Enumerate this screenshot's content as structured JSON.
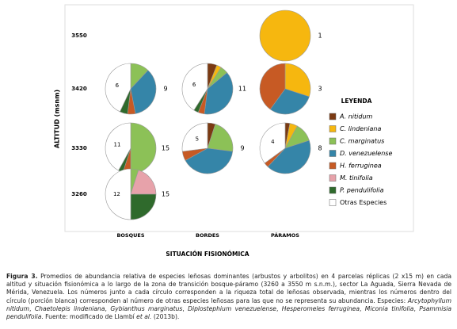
{
  "figure": {
    "y_axis_label": "ALTITUD (msnm)",
    "x_axis_label": "SITUACIÓN FISIONÓMICA",
    "situations": [
      "BOSQUES",
      "BORDES",
      "PÁRAMOS"
    ],
    "legend": {
      "title": "LEYENDA",
      "entries": [
        {
          "name": "A. nitidum",
          "color": "#7b3a12"
        },
        {
          "name": "C. lindeniana",
          "color": "#f6b70f"
        },
        {
          "name": "C. marginatus",
          "color": "#8cc157"
        },
        {
          "name": "D. venezuelense",
          "color": "#3585a8"
        },
        {
          "name": "H. ferruginea",
          "color": "#c75a24"
        },
        {
          "name": "M. tinifolia",
          "color": "#e7a2aa"
        },
        {
          "name": "P. pendulifolia",
          "color": "#2f6a2c"
        },
        {
          "name": "Otras Especies",
          "color": "#ffffff"
        }
      ]
    },
    "rows": [
      {
        "altitude": "3550",
        "pies": [
          null,
          null,
          {
            "richness": "1",
            "others": null,
            "values": [
              0,
              100,
              0,
              0,
              0,
              0,
              0,
              0
            ]
          }
        ]
      },
      {
        "altitude": "3420",
        "pies": [
          {
            "richness": "9",
            "others": "6",
            "values": [
              0,
              0,
              12,
              35,
              5,
              0,
              5,
              43
            ]
          },
          {
            "richness": "11",
            "others": "6",
            "values": [
              6,
              3,
              5,
              38,
              4,
              0,
              3,
              41
            ]
          },
          {
            "richness": "3",
            "others": null,
            "values": [
              0,
              30,
              0,
              30,
              40,
              0,
              0,
              0
            ]
          }
        ]
      },
      {
        "altitude": "3330",
        "pies": [
          {
            "richness": "15",
            "others": "11",
            "values": [
              0,
              0,
              50,
              0,
              5,
              0,
              3,
              42
            ]
          },
          {
            "richness": "9",
            "others": "5",
            "values": [
              5,
              0,
              22,
              40,
              6,
              0,
              0,
              27
            ]
          },
          {
            "richness": "8",
            "others": "4",
            "values": [
              3,
              5,
              12,
              42,
              3,
              0,
              0,
              35
            ]
          }
        ]
      },
      {
        "altitude": "3260",
        "pies": [
          {
            "richness": "15",
            "others": "12",
            "values": [
              0,
              0,
              5,
              0,
              0,
              20,
              25,
              50
            ]
          },
          null,
          null
        ]
      }
    ],
    "caption": [
      {
        "text": "Figura 3.",
        "bold": true
      },
      {
        "text": " Promedios de abundancia relativa de especies leñosas dominantes (arbustos y arbolitos) en 4 parcelas réplicas (2 x15 m) en cada altitud y situación fisionómica a lo largo de la zona de transición bosque-páramo (3260 a 3550 m s.n.m.), sector La Aguada, Sierra Nevada de Mérida, Venezuela. Los números junto a cada círculo corresponden a la riqueza total de leñosas observada, mientras los números dentro del círculo (porción blanca) corresponden al número de otras especies leñosas para las que no se representa su abundancia. Especies: "
      },
      {
        "text": "Arcytophyllum nitidum",
        "italic": true
      },
      {
        "text": ", "
      },
      {
        "text": "Chaetolepis lindeniana",
        "italic": true
      },
      {
        "text": ", "
      },
      {
        "text": "Gybianthus marginatus",
        "italic": true
      },
      {
        "text": ", "
      },
      {
        "text": "Diplostephium venezuelense",
        "italic": true
      },
      {
        "text": ", "
      },
      {
        "text": "Hesperomeles ferruginea",
        "italic": true
      },
      {
        "text": ", "
      },
      {
        "text": "Miconia tinifolia",
        "italic": true
      },
      {
        "text": ", "
      },
      {
        "text": "Psammisia pendulifolia",
        "italic": true
      },
      {
        "text": ". Fuente: modificado de Llambí "
      },
      {
        "text": "et al.",
        "italic": true
      },
      {
        "text": " (2013b)."
      }
    ]
  }
}
